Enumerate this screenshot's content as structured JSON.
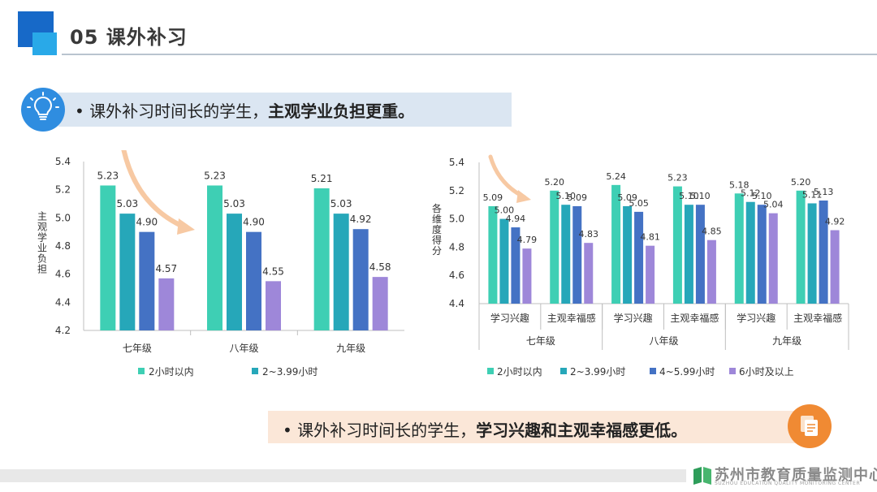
{
  "header": {
    "title": "05  课外补习"
  },
  "banner_top": {
    "bullet": "•",
    "text_normal": "课外补习时间长的学生，",
    "text_bold": "主观学业负担更重。"
  },
  "banner_bottom": {
    "bullet": "•",
    "text_normal": "课外补习时间长的学生，",
    "text_bold": "学习兴趣和主观幸福感更低。"
  },
  "footer": {
    "org_cn": "苏州市教育质量监测中心",
    "org_en": "SUZHOU EDUCATION QUALITY MONITORING CENTER"
  },
  "colors": {
    "s1": "#3ecfb4",
    "s2": "#26a7b9",
    "s3": "#4472c4",
    "s4": "#9e87d9",
    "accent_blue": "#2f8de0",
    "accent_orange": "#f08a33"
  },
  "chart_data": [
    {
      "type": "bar",
      "ylabel": "主观学业负担",
      "ylim": [
        4.2,
        5.4
      ],
      "yticks": [
        "4.2",
        "4.4",
        "4.6",
        "4.8",
        "5.0",
        "5.2",
        "5.4"
      ],
      "categories": [
        "七年级",
        "八年级",
        "九年级"
      ],
      "series": [
        {
          "name": "2小时以内",
          "values": [
            5.23,
            5.23,
            5.21
          ],
          "labels": [
            "5.23",
            "5.23",
            "5.21"
          ]
        },
        {
          "name": "2~3.99小时",
          "values": [
            5.03,
            5.03,
            5.03
          ],
          "labels": [
            "5.03",
            "5.03",
            "5.03"
          ]
        },
        {
          "name": "",
          "values": [
            4.9,
            4.9,
            4.92
          ],
          "labels": [
            "4.90",
            "4.90",
            "4.92"
          ]
        },
        {
          "name": "",
          "values": [
            4.57,
            4.55,
            4.58
          ],
          "labels": [
            "4.57",
            "4.55",
            "4.58"
          ]
        }
      ],
      "legend": [
        "2小时以内",
        "2~3.99小时"
      ],
      "grid": false
    },
    {
      "type": "bar",
      "ylabel": "各维度得分",
      "ylim": [
        4.4,
        5.4
      ],
      "yticks": [
        "4.4",
        "4.6",
        "4.8",
        "5.0",
        "5.2",
        "5.4"
      ],
      "groups": [
        "七年级",
        "八年级",
        "九年级"
      ],
      "subcategories": [
        "学习兴趣",
        "主观幸福感"
      ],
      "series": [
        {
          "name": "2小时以内",
          "values": [
            5.09,
            5.2,
            5.24,
            5.23,
            5.18,
            5.2
          ],
          "labels": [
            "5.09",
            "5.20",
            "5.24",
            "5.23",
            "5.18",
            "5.20"
          ]
        },
        {
          "name": "2~3.99小时",
          "values": [
            5.0,
            5.1,
            5.09,
            5.1,
            5.12,
            5.11
          ],
          "labels": [
            "5.00",
            "5.10",
            "5.09",
            "5.10",
            "5.12",
            "5.11"
          ]
        },
        {
          "name": "4~5.99小时",
          "values": [
            4.94,
            5.09,
            5.05,
            5.1,
            5.1,
            5.13
          ],
          "labels": [
            "4.94",
            "5.09",
            "5.05",
            "5.10",
            "5.10",
            "5.13"
          ]
        },
        {
          "name": "6小时及以上",
          "values": [
            4.79,
            4.83,
            4.81,
            4.85,
            5.04,
            4.92
          ],
          "labels": [
            "4.79",
            "4.83",
            "4.81",
            "4.85",
            "5.04",
            "4.92"
          ]
        }
      ],
      "legend": [
        "2小时以内",
        "2~3.99小时",
        "4~5.99小时",
        "6小时及以上"
      ],
      "grid": false
    }
  ]
}
